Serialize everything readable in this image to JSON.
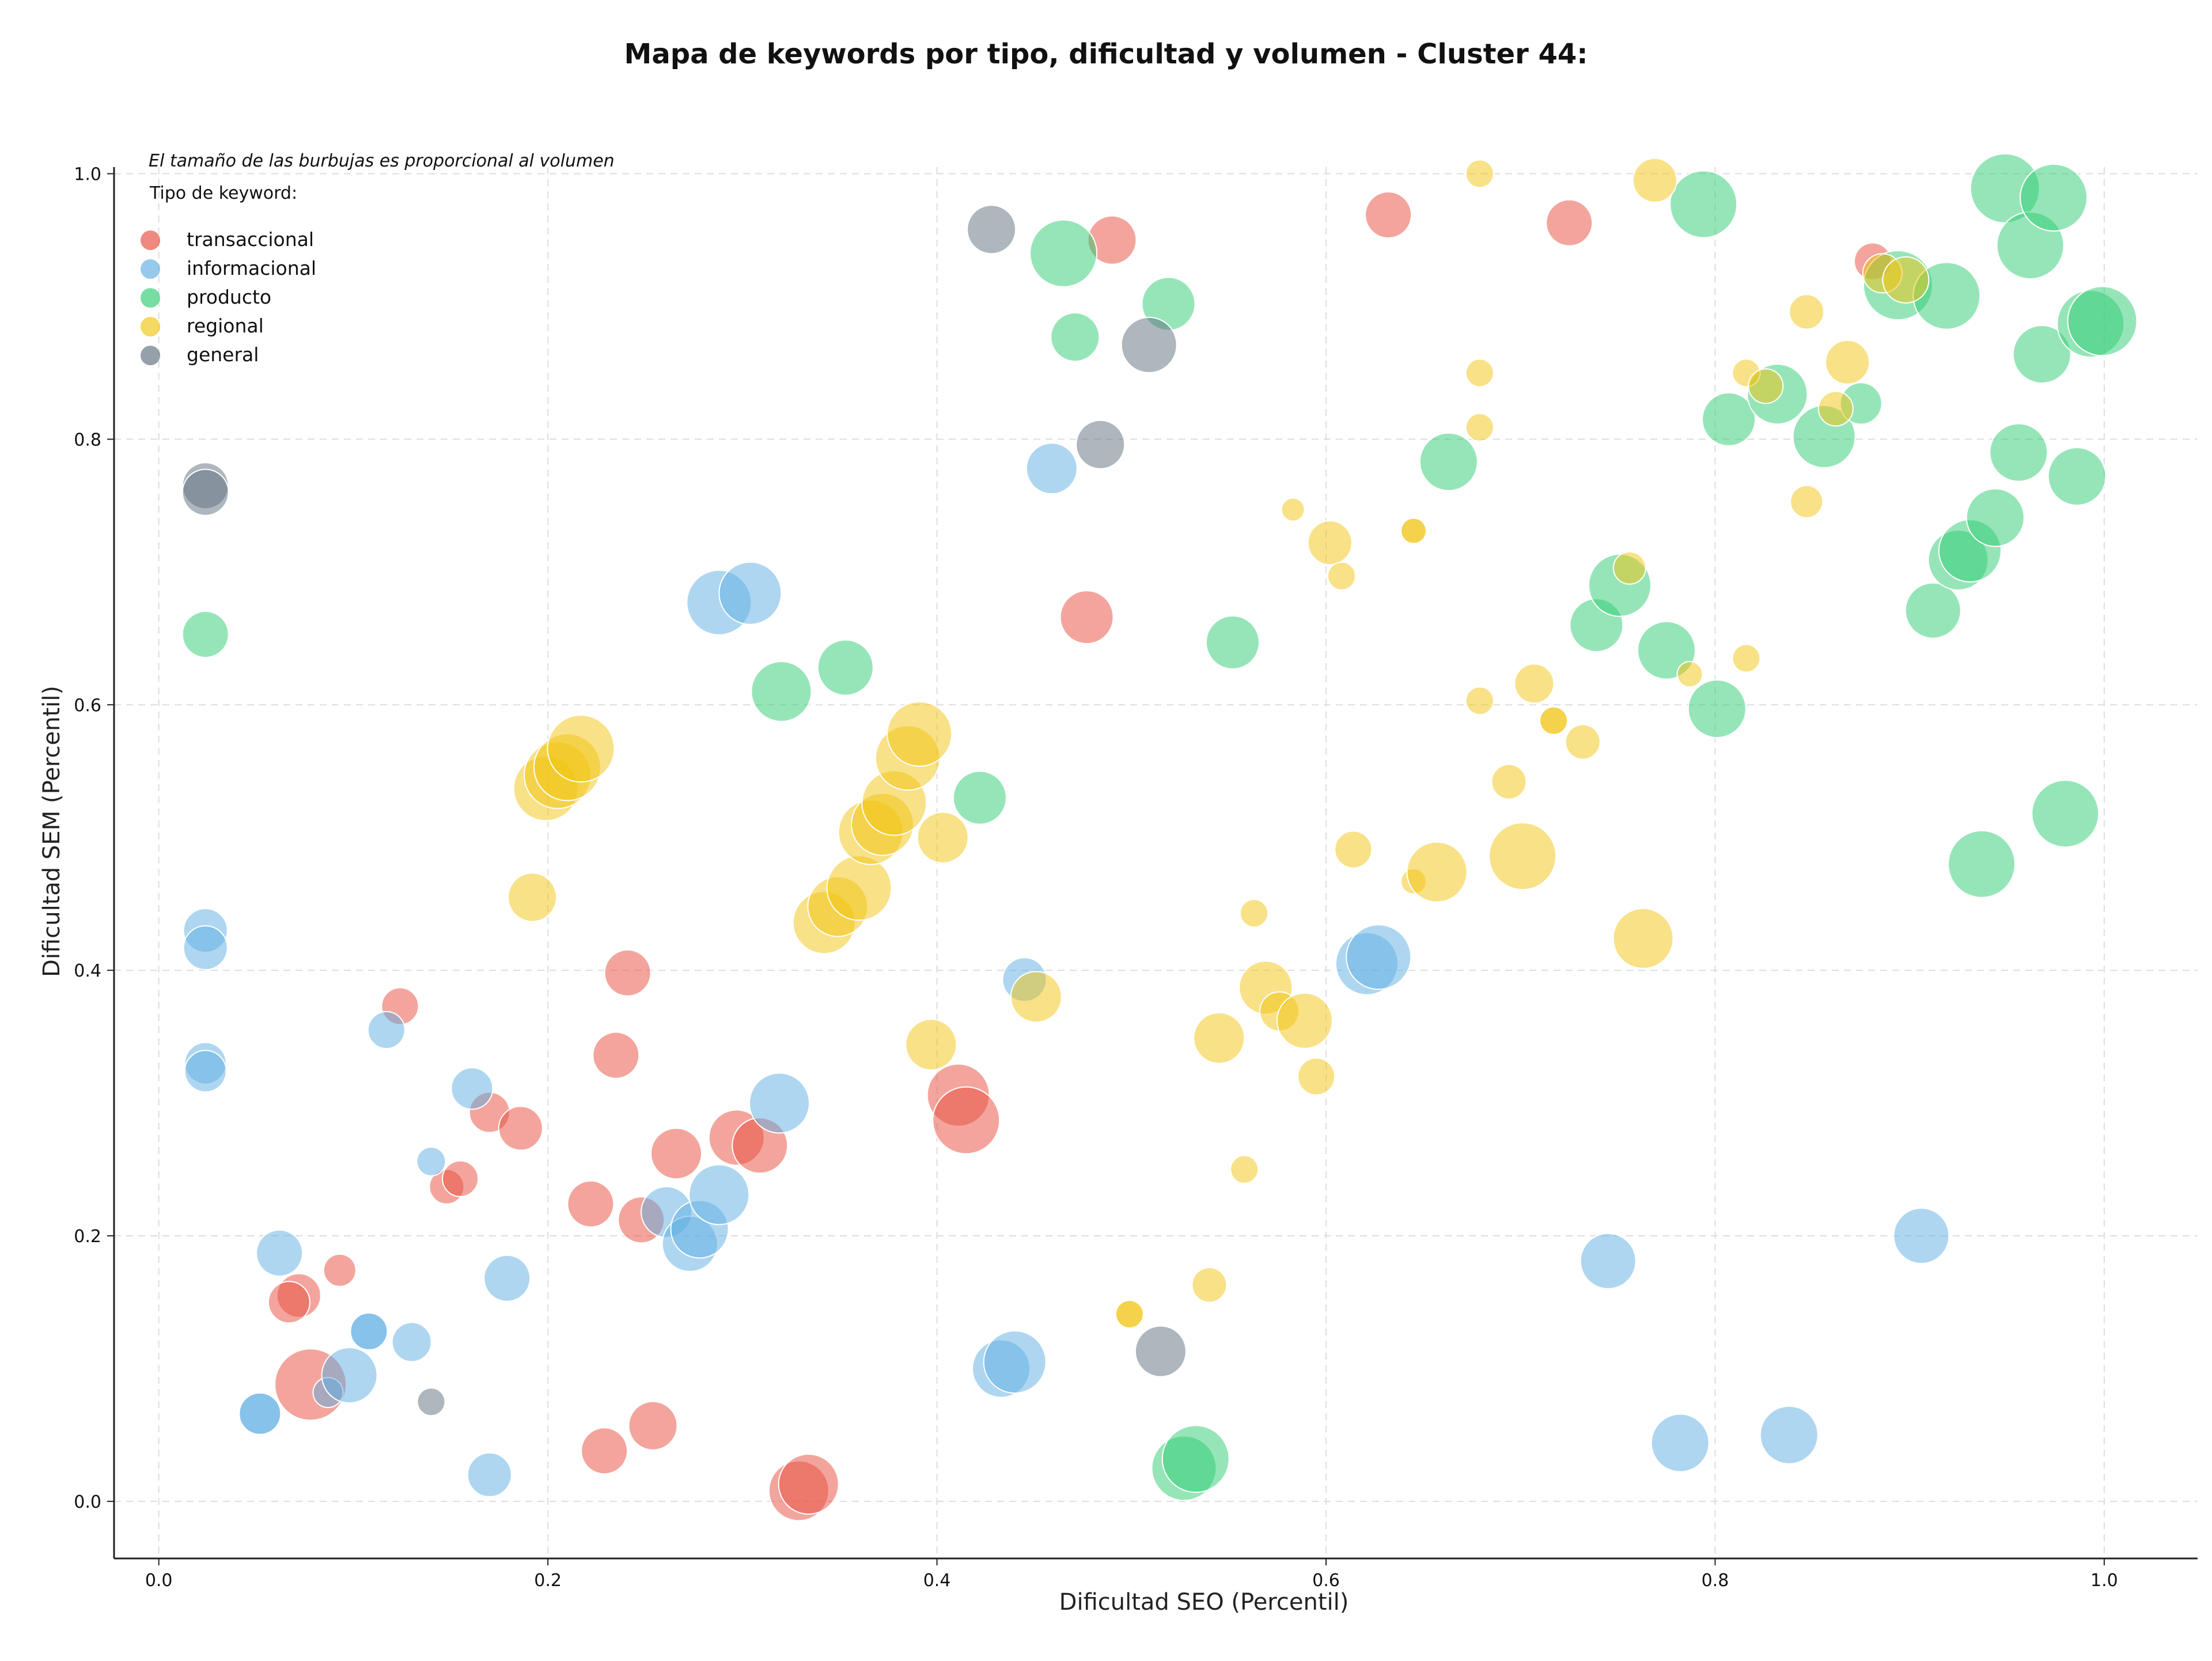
{
  "chart_data": {
    "type": "scatter",
    "title": "Mapa de keywords por tipo, dificultad y volumen - Cluster 44:",
    "xlabel": "Dificultad SEO (Percentil)",
    "ylabel": "Dificultad SEM (Percentil)",
    "annotation": "El tamaño de las burbujas es proporcional al volumen",
    "legend_title": "Tipo de keyword:",
    "legend_position": "top-left",
    "grid": true,
    "xlim": [
      -0.023,
      1.048
    ],
    "ylim": [
      -0.043,
      1.005
    ],
    "xticks": [
      "0.0",
      "0.2",
      "0.4",
      "0.6",
      "0.8",
      "1.0"
    ],
    "yticks": [
      "0.0",
      "0.2",
      "0.4",
      "0.6",
      "0.8",
      "1.0"
    ],
    "series": [
      {
        "name": "transaccional",
        "color": "#e74c3c",
        "points": [
          [
            0.078,
            0.088,
            62
          ],
          [
            0.072,
            0.155,
            38
          ],
          [
            0.067,
            0.15,
            36
          ],
          [
            0.093,
            0.174,
            28
          ],
          [
            0.124,
            0.373,
            32
          ],
          [
            0.148,
            0.237,
            30
          ],
          [
            0.155,
            0.243,
            31
          ],
          [
            0.17,
            0.293,
            35
          ],
          [
            0.186,
            0.281,
            38
          ],
          [
            0.222,
            0.224,
            40
          ],
          [
            0.229,
            0.038,
            40
          ],
          [
            0.235,
            0.336,
            40
          ],
          [
            0.241,
            0.398,
            40
          ],
          [
            0.248,
            0.212,
            40
          ],
          [
            0.254,
            0.057,
            42
          ],
          [
            0.266,
            0.262,
            44
          ],
          [
            0.297,
            0.274,
            48
          ],
          [
            0.309,
            0.268,
            48
          ],
          [
            0.329,
            0.008,
            52
          ],
          [
            0.334,
            0.013,
            52
          ],
          [
            0.411,
            0.306,
            54
          ],
          [
            0.415,
            0.287,
            58
          ],
          [
            0.477,
            0.666,
            46
          ],
          [
            0.49,
            0.95,
            42
          ],
          [
            0.632,
            0.969,
            40
          ],
          [
            0.725,
            0.963,
            40
          ],
          [
            0.881,
            0.934,
            32
          ]
        ]
      },
      {
        "name": "informacional",
        "color": "#5dade2",
        "points": [
          [
            0.024,
            0.43,
            38
          ],
          [
            0.024,
            0.417,
            38
          ],
          [
            0.024,
            0.33,
            36
          ],
          [
            0.024,
            0.324,
            36
          ],
          [
            0.052,
            0.066,
            36
          ],
          [
            0.052,
            0.066,
            36
          ],
          [
            0.062,
            0.187,
            40
          ],
          [
            0.087,
            0.082,
            26
          ],
          [
            0.098,
            0.095,
            48
          ],
          [
            0.108,
            0.128,
            32
          ],
          [
            0.108,
            0.128,
            32
          ],
          [
            0.117,
            0.355,
            32
          ],
          [
            0.13,
            0.12,
            34
          ],
          [
            0.14,
            0.256,
            25
          ],
          [
            0.161,
            0.311,
            36
          ],
          [
            0.17,
            0.02,
            38
          ],
          [
            0.179,
            0.168,
            40
          ],
          [
            0.261,
            0.218,
            44
          ],
          [
            0.273,
            0.194,
            48
          ],
          [
            0.278,
            0.205,
            50
          ],
          [
            0.288,
            0.231,
            52
          ],
          [
            0.288,
            0.677,
            56
          ],
          [
            0.304,
            0.684,
            54
          ],
          [
            0.319,
            0.3,
            52
          ],
          [
            0.433,
            0.1,
            50
          ],
          [
            0.44,
            0.105,
            54
          ],
          [
            0.445,
            0.393,
            38
          ],
          [
            0.459,
            0.778,
            44
          ],
          [
            0.621,
            0.405,
            54
          ],
          [
            0.627,
            0.41,
            56
          ],
          [
            0.745,
            0.181,
            48
          ],
          [
            0.782,
            0.044,
            50
          ],
          [
            0.838,
            0.05,
            50
          ],
          [
            0.906,
            0.2,
            48
          ]
        ]
      },
      {
        "name": "producto",
        "color": "#2ecc71",
        "points": [
          [
            0.024,
            0.653,
            40
          ],
          [
            0.32,
            0.61,
            52
          ],
          [
            0.353,
            0.628,
            48
          ],
          [
            0.422,
            0.53,
            46
          ],
          [
            0.465,
            0.94,
            58
          ],
          [
            0.471,
            0.877,
            42
          ],
          [
            0.519,
            0.902,
            46
          ],
          [
            0.527,
            0.025,
            56
          ],
          [
            0.533,
            0.032,
            58
          ],
          [
            0.552,
            0.647,
            46
          ],
          [
            0.663,
            0.783,
            50
          ],
          [
            0.739,
            0.66,
            46
          ],
          [
            0.751,
            0.69,
            54
          ],
          [
            0.775,
            0.641,
            50
          ],
          [
            0.794,
            0.977,
            58
          ],
          [
            0.801,
            0.597,
            50
          ],
          [
            0.807,
            0.815,
            46
          ],
          [
            0.832,
            0.834,
            52
          ],
          [
            0.856,
            0.802,
            54
          ],
          [
            0.875,
            0.827,
            36
          ],
          [
            0.894,
            0.916,
            60
          ],
          [
            0.919,
            0.908,
            58
          ],
          [
            0.912,
            0.671,
            48
          ],
          [
            0.925,
            0.709,
            52
          ],
          [
            0.931,
            0.716,
            54
          ],
          [
            0.937,
            0.48,
            58
          ],
          [
            0.944,
            0.741,
            50
          ],
          [
            0.949,
            0.989,
            60
          ],
          [
            0.956,
            0.79,
            50
          ],
          [
            0.962,
            0.946,
            58
          ],
          [
            0.968,
            0.864,
            50
          ],
          [
            0.974,
            0.982,
            58
          ],
          [
            0.98,
            0.518,
            58
          ],
          [
            0.986,
            0.772,
            50
          ],
          [
            0.993,
            0.887,
            58
          ],
          [
            0.999,
            0.889,
            60
          ]
        ]
      },
      {
        "name": "regional",
        "color": "#f1c40f",
        "points": [
          [
            0.192,
            0.455,
            42
          ],
          [
            0.199,
            0.537,
            56
          ],
          [
            0.205,
            0.547,
            58
          ],
          [
            0.21,
            0.553,
            58
          ],
          [
            0.217,
            0.567,
            58
          ],
          [
            0.342,
            0.436,
            54
          ],
          [
            0.349,
            0.448,
            52
          ],
          [
            0.36,
            0.462,
            56
          ],
          [
            0.366,
            0.504,
            56
          ],
          [
            0.372,
            0.51,
            54
          ],
          [
            0.378,
            0.526,
            56
          ],
          [
            0.385,
            0.56,
            56
          ],
          [
            0.391,
            0.578,
            56
          ],
          [
            0.397,
            0.344,
            44
          ],
          [
            0.403,
            0.5,
            44
          ],
          [
            0.451,
            0.38,
            44
          ],
          [
            0.499,
            0.141,
            24
          ],
          [
            0.499,
            0.141,
            24
          ],
          [
            0.54,
            0.163,
            30
          ],
          [
            0.545,
            0.349,
            44
          ],
          [
            0.558,
            0.25,
            24
          ],
          [
            0.563,
            0.443,
            24
          ],
          [
            0.569,
            0.387,
            46
          ],
          [
            0.576,
            0.369,
            34
          ],
          [
            0.583,
            0.747,
            20
          ],
          [
            0.589,
            0.362,
            48
          ],
          [
            0.595,
            0.32,
            32
          ],
          [
            0.602,
            0.722,
            38
          ],
          [
            0.608,
            0.697,
            24
          ],
          [
            0.614,
            0.491,
            32
          ],
          [
            0.645,
            0.731,
            22
          ],
          [
            0.645,
            0.731,
            22
          ],
          [
            0.645,
            0.467,
            22
          ],
          [
            0.657,
            0.474,
            52
          ],
          [
            0.679,
            0.603,
            24
          ],
          [
            0.679,
            0.809,
            24
          ],
          [
            0.679,
            0.85,
            24
          ],
          [
            0.679,
            1.0,
            24
          ],
          [
            0.694,
            0.542,
            30
          ],
          [
            0.701,
            0.486,
            58
          ],
          [
            0.707,
            0.616,
            34
          ],
          [
            0.717,
            0.588,
            24
          ],
          [
            0.717,
            0.588,
            24
          ],
          [
            0.732,
            0.572,
            30
          ],
          [
            0.756,
            0.703,
            28
          ],
          [
            0.763,
            0.424,
            52
          ],
          [
            0.769,
            0.995,
            38
          ],
          [
            0.787,
            0.623,
            22
          ],
          [
            0.816,
            0.635,
            24
          ],
          [
            0.816,
            0.85,
            24
          ],
          [
            0.826,
            0.84,
            30
          ],
          [
            0.847,
            0.753,
            28
          ],
          [
            0.847,
            0.896,
            30
          ],
          [
            0.862,
            0.823,
            30
          ],
          [
            0.868,
            0.858,
            38
          ],
          [
            0.886,
            0.925,
            34
          ],
          [
            0.898,
            0.92,
            40
          ]
        ]
      },
      {
        "name": "general",
        "color": "#5d6d7e",
        "points": [
          [
            0.024,
            0.765,
            40
          ],
          [
            0.024,
            0.76,
            40
          ],
          [
            0.14,
            0.075,
            24
          ],
          [
            0.428,
            0.958,
            42
          ],
          [
            0.484,
            0.796,
            42
          ],
          [
            0.509,
            0.871,
            48
          ],
          [
            0.515,
            0.113,
            44
          ]
        ]
      }
    ]
  }
}
